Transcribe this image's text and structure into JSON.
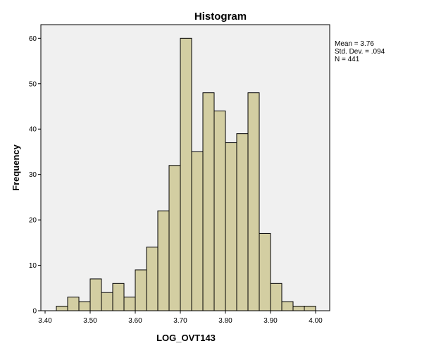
{
  "chart_data": {
    "type": "bar",
    "title": "Histogram",
    "xlabel": "LOG_OVT143",
    "ylabel": "Frequency",
    "xlim": [
      3.4,
      4.0
    ],
    "ylim": [
      0,
      63
    ],
    "bin_width": 0.025,
    "x_ticks": [
      "3.40",
      "3.50",
      "3.60",
      "3.70",
      "3.80",
      "3.90",
      "4.00"
    ],
    "y_ticks": [
      "0",
      "10",
      "20",
      "30",
      "40",
      "50",
      "60"
    ],
    "bins": [
      {
        "start": 3.425,
        "end": 3.45,
        "count": 1
      },
      {
        "start": 3.45,
        "end": 3.475,
        "count": 3
      },
      {
        "start": 3.475,
        "end": 3.5,
        "count": 2
      },
      {
        "start": 3.5,
        "end": 3.525,
        "count": 7
      },
      {
        "start": 3.525,
        "end": 3.55,
        "count": 4
      },
      {
        "start": 3.55,
        "end": 3.575,
        "count": 6
      },
      {
        "start": 3.575,
        "end": 3.6,
        "count": 3
      },
      {
        "start": 3.6,
        "end": 3.625,
        "count": 9
      },
      {
        "start": 3.625,
        "end": 3.65,
        "count": 14
      },
      {
        "start": 3.65,
        "end": 3.675,
        "count": 22
      },
      {
        "start": 3.675,
        "end": 3.7,
        "count": 32
      },
      {
        "start": 3.7,
        "end": 3.725,
        "count": 60
      },
      {
        "start": 3.725,
        "end": 3.75,
        "count": 35
      },
      {
        "start": 3.75,
        "end": 3.775,
        "count": 48
      },
      {
        "start": 3.775,
        "end": 3.8,
        "count": 44
      },
      {
        "start": 3.8,
        "end": 3.825,
        "count": 37
      },
      {
        "start": 3.825,
        "end": 3.85,
        "count": 39
      },
      {
        "start": 3.85,
        "end": 3.875,
        "count": 48
      },
      {
        "start": 3.875,
        "end": 3.9,
        "count": 17
      },
      {
        "start": 3.9,
        "end": 3.925,
        "count": 6
      },
      {
        "start": 3.925,
        "end": 3.95,
        "count": 2
      },
      {
        "start": 3.95,
        "end": 3.975,
        "count": 1
      },
      {
        "start": 3.975,
        "end": 4.0,
        "count": 1
      }
    ],
    "grid": false,
    "stats": {
      "mean": "Mean = 3.76",
      "std": "Std. Dev. = .094",
      "n": "N = 441"
    },
    "colors": {
      "bar_fill": "#d3cea2",
      "bar_stroke": "#000000",
      "plot_bg": "#f0f0f0"
    }
  }
}
